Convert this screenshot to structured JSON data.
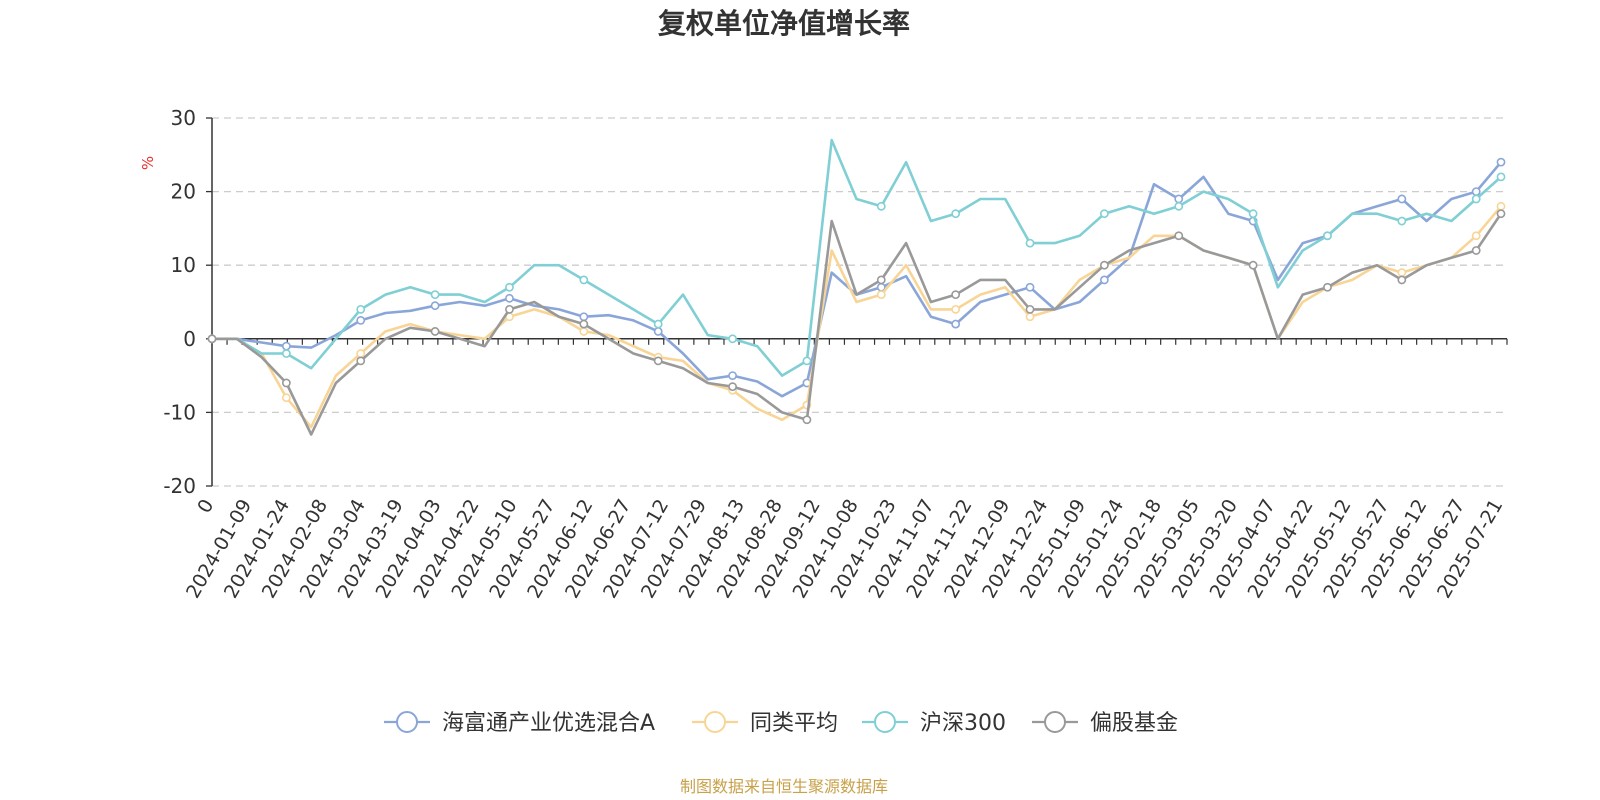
{
  "chart_data": {
    "type": "line",
    "title": "复权单位净值增长率",
    "ylabel": "%",
    "ylim": [
      -20,
      30
    ],
    "yticks": [
      -20,
      -10,
      0,
      10,
      20,
      30
    ],
    "x_start_label": "0",
    "x_tick_labels": [
      "2024-01-09",
      "2024-01-24",
      "2024-02-08",
      "2024-03-04",
      "2024-03-19",
      "2024-04-03",
      "2024-04-22",
      "2024-05-10",
      "2024-05-27",
      "2024-06-12",
      "2024-06-27",
      "2024-07-12",
      "2024-07-29",
      "2024-08-13",
      "2024-08-28",
      "2024-09-12",
      "2024-10-08",
      "2024-10-23",
      "2024-11-07",
      "2024-11-22",
      "2024-12-09",
      "2024-12-24",
      "2025-01-09",
      "2025-01-24",
      "2025-02-18",
      "2025-03-05",
      "2025-03-20",
      "2025-04-07",
      "2025-04-22",
      "2025-05-12",
      "2025-05-27",
      "2025-06-12",
      "2025-06-27",
      "2025-07-21"
    ],
    "grid": "horizontal-dashed",
    "legend_position": "bottom",
    "series": [
      {
        "name": "海富通产业优选混合A",
        "color": "#8aa6d8",
        "values": [
          0,
          0,
          -0.5,
          -1,
          -1.2,
          0.5,
          2.5,
          3.5,
          3.8,
          4.5,
          5,
          4.5,
          5.5,
          4.5,
          4,
          3,
          3.2,
          2.5,
          1,
          -2,
          -5.5,
          -5,
          -5.8,
          -7.8,
          -6,
          9,
          6,
          7,
          8.5,
          3,
          2,
          5,
          6,
          7,
          4,
          5,
          8,
          11,
          21,
          19,
          22,
          17,
          16,
          8,
          13,
          14,
          17,
          18,
          19,
          16,
          19,
          20,
          24
        ]
      },
      {
        "name": "同类平均",
        "color": "#f8d596",
        "values": [
          0,
          0,
          -2,
          -8,
          -12,
          -5,
          -2,
          1,
          2,
          1,
          0.5,
          0,
          3,
          4,
          3,
          1,
          0.5,
          -1,
          -2.5,
          -3,
          -6,
          -7,
          -9.5,
          -11,
          -9,
          12,
          5,
          6,
          10,
          4,
          4,
          6,
          7,
          3,
          4,
          8,
          10,
          11,
          14,
          14,
          12,
          11,
          10,
          0,
          5,
          7,
          8,
          10,
          9,
          10,
          11,
          14,
          18
        ]
      },
      {
        "name": "沪深300",
        "color": "#7fcfd4",
        "values": [
          0,
          0,
          -2,
          -2,
          -4,
          0,
          4,
          6,
          7,
          6,
          6,
          5,
          7,
          10,
          10,
          8,
          6,
          4,
          2,
          6,
          0.5,
          0,
          -1,
          -5,
          -3,
          27,
          19,
          18,
          24,
          16,
          17,
          19,
          19,
          13,
          13,
          14,
          17,
          18,
          17,
          18,
          20,
          19,
          17,
          7,
          12,
          14,
          17,
          17,
          16,
          17,
          16,
          19,
          22
        ]
      },
      {
        "name": "偏股基金",
        "color": "#999999",
        "values": [
          0,
          0,
          -2.5,
          -6,
          -13,
          -6,
          -3,
          0,
          1.5,
          1,
          0,
          -1,
          4,
          5,
          3,
          2,
          0,
          -2,
          -3,
          -4,
          -6,
          -6.5,
          -7.5,
          -10,
          -11,
          16,
          6,
          8,
          13,
          5,
          6,
          8,
          8,
          4,
          4,
          7,
          10,
          12,
          13,
          14,
          12,
          11,
          10,
          0,
          6,
          7,
          9,
          10,
          8,
          10,
          11,
          12,
          17
        ]
      }
    ]
  },
  "source": "制图数据来自恒生聚源数据库"
}
